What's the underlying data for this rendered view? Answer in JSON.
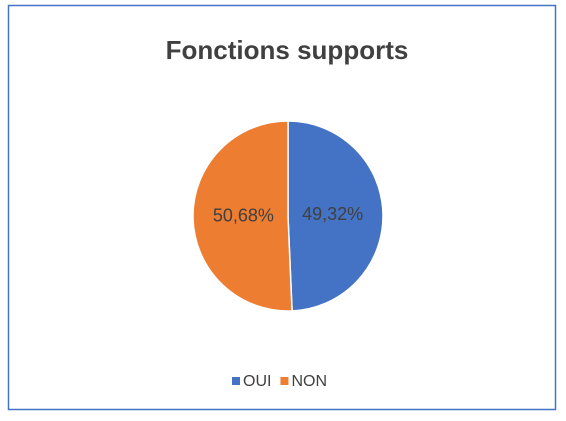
{
  "chart_data": {
    "type": "pie",
    "title": "Fonctions supports",
    "categories": [
      "OUI",
      "NON"
    ],
    "values": [
      49.32,
      50.68
    ],
    "value_labels": [
      "49,32%",
      "50,68%"
    ],
    "colors": [
      "#4472c4",
      "#ed7d31"
    ],
    "legend": "bottom"
  }
}
